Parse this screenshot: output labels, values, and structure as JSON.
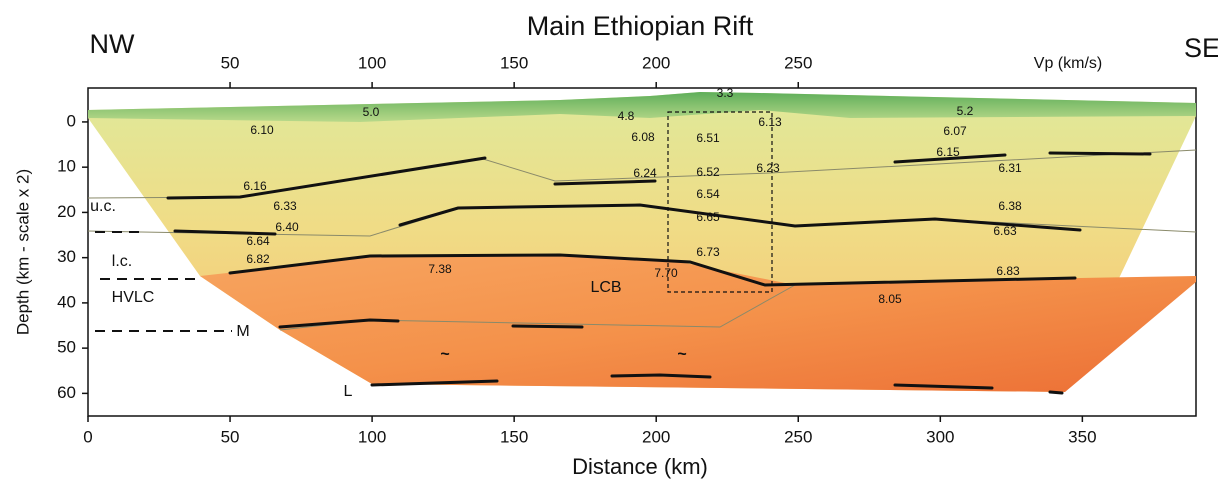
{
  "chart_data": {
    "type": "section",
    "title": "Main Ethiopian Rift",
    "left_label": "NW",
    "right_label": "SE",
    "top_axis_label": "Vp (km/s)",
    "x_label": "Distance (km)",
    "y_label": "Depth (km - scale x 2)",
    "xlim": [
      0,
      390
    ],
    "ylim": [
      -7.5,
      65
    ],
    "xticks": [
      0,
      50,
      100,
      150,
      200,
      250,
      300,
      350
    ],
    "top_xticks": [
      50,
      100,
      150,
      200,
      250
    ],
    "yticks": [
      0,
      10,
      20,
      30,
      40,
      50,
      60
    ],
    "velocity_labels": [
      "5.0",
      "4.8",
      "3.3",
      "5.2",
      "6.10",
      "6.08",
      "6.51",
      "6.13",
      "6.07",
      "6.16",
      "6.24",
      "6.52",
      "6.23",
      "6.15",
      "6.31",
      "6.33",
      "6.54",
      "6.38",
      "6.40",
      "6.65",
      "6.63",
      "6.64",
      "6.73",
      "6.82",
      "7.38",
      "7.70",
      "6.83",
      "8.05"
    ],
    "annotations": [
      "u.c.",
      "l.c.",
      "HVLC",
      "M",
      "L",
      "LCB",
      "~",
      "~"
    ]
  }
}
